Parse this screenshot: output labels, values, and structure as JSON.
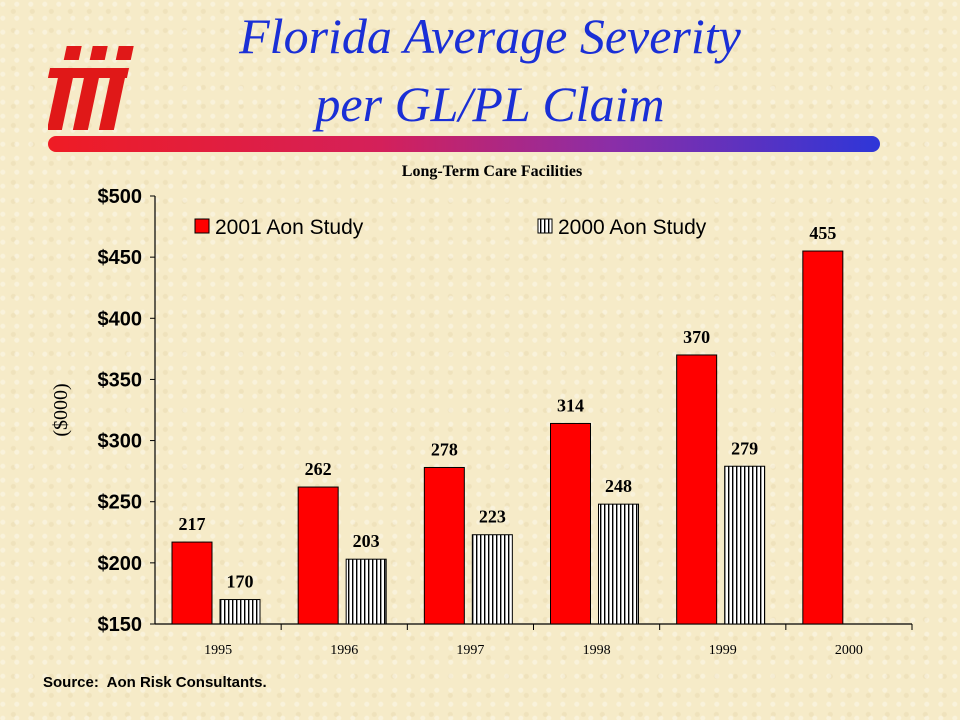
{
  "slide": {
    "title_line1": "Florida Average Severity",
    "title_line2": "per GL/PL Claim",
    "source": "Source:  Aon Risk Consultants."
  },
  "colors": {
    "title": "#1a2fd6",
    "bar_2001": "#ff0000",
    "logo": "#e01818"
  },
  "logo": {
    "icon": "iii-logo"
  },
  "chart_data": {
    "type": "bar",
    "title": "Long-Term Care Facilities",
    "ylabel": "($000)",
    "xlabel": "",
    "categories": [
      "1995",
      "1996",
      "1997",
      "1998",
      "1999",
      "2000"
    ],
    "ylim": [
      150,
      500
    ],
    "yticks": [
      150,
      200,
      250,
      300,
      350,
      400,
      450,
      500
    ],
    "ytick_labels": [
      "$150",
      "$200",
      "$250",
      "$300",
      "$350",
      "$400",
      "$450",
      "$500"
    ],
    "legend_position": "top",
    "series": [
      {
        "name": "2001 Aon Study",
        "pattern": "solid",
        "values": [
          217,
          262,
          278,
          314,
          370,
          455
        ]
      },
      {
        "name": "2000 Aon Study",
        "pattern": "vertical-stripes",
        "values": [
          170,
          203,
          223,
          248,
          279,
          null
        ]
      }
    ]
  }
}
